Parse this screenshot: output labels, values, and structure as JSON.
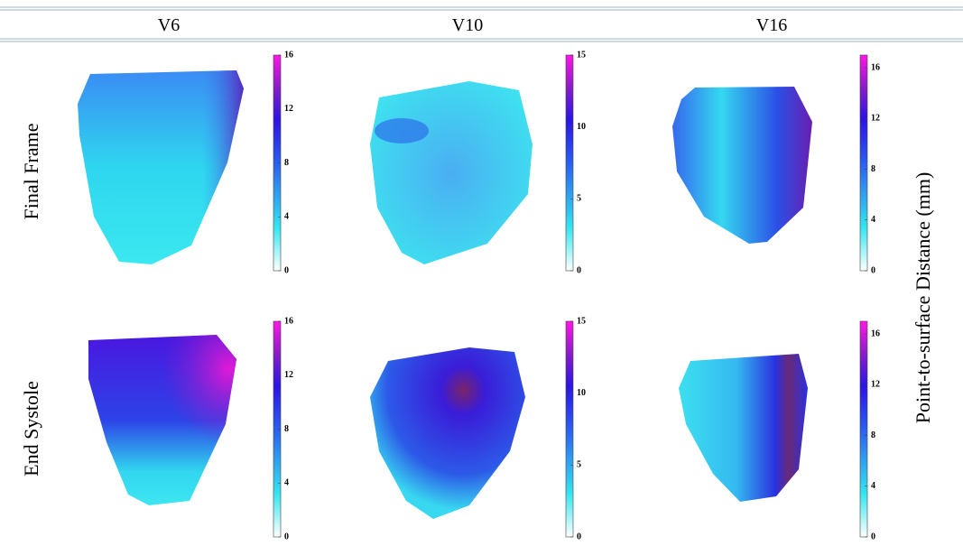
{
  "header": {
    "columns": [
      "V6",
      "V10",
      "V16"
    ]
  },
  "rows": [
    {
      "label": "Final Frame",
      "colorbars": [
        {
          "lim": [
            0,
            16
          ],
          "ticks": [
            0,
            4,
            8,
            12,
            16
          ]
        },
        {
          "lim": [
            0,
            15
          ],
          "ticks": [
            0,
            5,
            10,
            15
          ]
        },
        {
          "lim": [
            0,
            17
          ],
          "ticks": [
            0,
            4,
            8,
            12,
            16
          ]
        }
      ]
    },
    {
      "label": "End Systole",
      "colorbars": [
        {
          "lim": [
            0,
            16
          ],
          "ticks": [
            0,
            4,
            8,
            12,
            16
          ]
        },
        {
          "lim": [
            0,
            15
          ],
          "ticks": [
            0,
            5,
            10,
            15
          ]
        },
        {
          "lim": [
            0,
            17
          ],
          "ticks": [
            0,
            4,
            8,
            12,
            16
          ]
        }
      ]
    }
  ],
  "side_label": "Point-to-surface Distance (mm)"
}
